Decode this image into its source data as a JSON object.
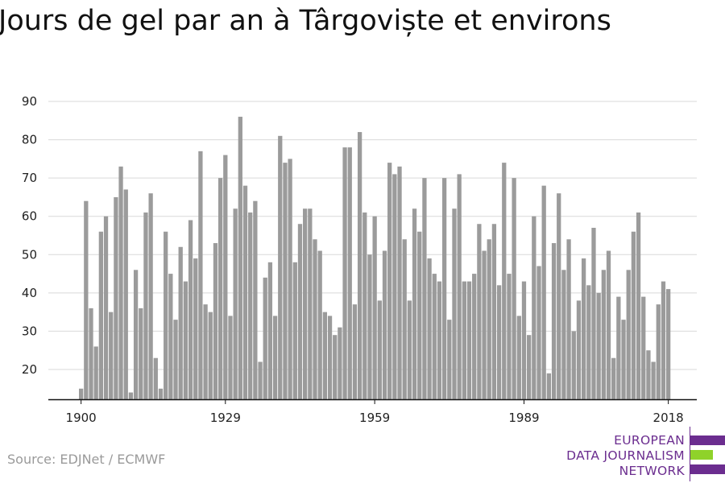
{
  "title": "Jours de gel par an à Târgoviște et environs",
  "source": "Source: EDJNet / ECMWF",
  "logo": {
    "lines": [
      "EUROPEAN",
      "DATA JOURNALISM",
      "NETWORK"
    ],
    "colors": {
      "purple": "#6b2d8f",
      "green": "#8fd22a"
    }
  },
  "colors": {
    "bar": "#9b9b9b",
    "grid": "#d9d9d9",
    "axis": "#111111"
  },
  "chart_data": {
    "type": "bar",
    "title": "Jours de gel par an à Târgoviște et environs",
    "xlabel": "",
    "ylabel": "",
    "x_start": 1900,
    "x_end": 2018,
    "x_ticks": [
      "1900",
      "1929",
      "1959",
      "1989",
      "2018"
    ],
    "y_ticks": [
      20,
      30,
      40,
      50,
      60,
      70,
      80,
      90
    ],
    "ylim": [
      12,
      90
    ],
    "grid": true,
    "values": [
      15,
      64,
      36,
      26,
      56,
      60,
      35,
      65,
      73,
      67,
      14,
      46,
      36,
      61,
      66,
      23,
      15,
      56,
      45,
      33,
      52,
      43,
      59,
      49,
      77,
      37,
      35,
      53,
      70,
      76,
      34,
      62,
      86,
      68,
      61,
      64,
      22,
      44,
      48,
      34,
      81,
      74,
      75,
      48,
      58,
      62,
      62,
      54,
      51,
      35,
      34,
      29,
      31,
      78,
      78,
      37,
      82,
      61,
      50,
      60,
      38,
      51,
      74,
      71,
      73,
      54,
      38,
      62,
      56,
      70,
      49,
      45,
      43,
      70,
      33,
      62,
      71,
      43,
      43,
      45,
      58,
      51,
      54,
      58,
      42,
      74,
      45,
      70,
      34,
      43,
      29,
      60,
      47,
      68,
      19,
      53,
      66,
      46,
      54,
      30,
      38,
      49,
      42,
      57,
      40,
      46,
      51,
      23,
      39,
      33,
      46,
      56,
      61,
      39,
      25,
      22,
      37,
      43,
      41
    ]
  }
}
